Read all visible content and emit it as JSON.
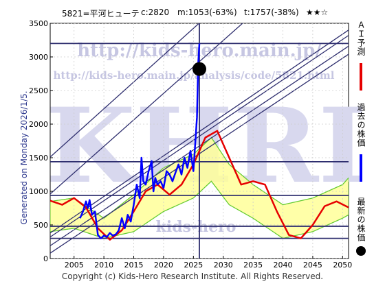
{
  "header": {
    "code_name": "5821=平河ヒューテ",
    "current": "c:2820",
    "median": "m:1053(-63%)",
    "target": "t:1757(-38%)",
    "stars": "★★☆"
  },
  "generated": "Generated on Monday 2026/1/5.",
  "footer": "Copyright (c) Kids-Hero Research Institute. All Rights Reserved.",
  "watermark": {
    "url1": "http://kids-hero.main.jp/",
    "url2": "http://kids-hero.main.jp/analysis/code/5821.html",
    "big": "KHRI",
    "bottom": "kids-hero"
  },
  "legend": {
    "ai": "ＡＩ予測",
    "past": "過去の株価",
    "latest": "最新の株価"
  },
  "colors": {
    "ai": "#e60000",
    "past": "#0000ff",
    "band_light": "#ffff99",
    "band_green": "#66cc33",
    "trend": "#2e2e6e",
    "latest": "#000000"
  },
  "chart_data": {
    "type": "line",
    "xlim": [
      2001,
      2051
    ],
    "ylim": [
      0,
      3500
    ],
    "x_ticks": [
      2005,
      2010,
      2015,
      2020,
      2025,
      2030,
      2035,
      2040,
      2045,
      2050
    ],
    "y_ticks": [
      0,
      500,
      1000,
      1500,
      2000,
      2500,
      3000,
      3500
    ],
    "hlines": [
      3200,
      1440,
      940,
      480,
      300
    ],
    "vline": 2026,
    "series": [
      {
        "name": "過去の株価",
        "x": [
          2006,
          2006.5,
          2007,
          2007.3,
          2007.6,
          2008,
          2008.5,
          2009,
          2009.5,
          2010,
          2010.5,
          2011,
          2011.5,
          2012,
          2012.5,
          2013,
          2013.5,
          2014,
          2014.5,
          2015,
          2015.5,
          2016,
          2016.3,
          2016.6,
          2017,
          2017.5,
          2018,
          2018.3,
          2018.6,
          2019,
          2019.5,
          2020,
          2020.5,
          2021,
          2021.5,
          2022,
          2022.5,
          2023,
          2023.5,
          2024,
          2024.5,
          2025,
          2025.3,
          2025.6,
          2025.8,
          2026
        ],
        "y": [
          600,
          700,
          850,
          750,
          870,
          650,
          700,
          350,
          300,
          340,
          320,
          380,
          340,
          360,
          420,
          600,
          450,
          650,
          550,
          800,
          1100,
          900,
          1500,
          1150,
          1100,
          1300,
          1450,
          1000,
          1200,
          1100,
          1150,
          1050,
          1300,
          1250,
          1150,
          1280,
          1400,
          1250,
          1500,
          1350,
          1600,
          1300,
          1700,
          2100,
          2900,
          3200
        ]
      },
      {
        "name": "ＡＩ予測",
        "x": [
          2001,
          2003,
          2005,
          2007,
          2009,
          2011,
          2013,
          2015,
          2017,
          2019,
          2021,
          2023,
          2025,
          2027,
          2029,
          2031,
          2033,
          2035,
          2037,
          2039,
          2041,
          2043,
          2045,
          2047,
          2049,
          2051
        ],
        "y": [
          860,
          800,
          900,
          760,
          450,
          280,
          420,
          700,
          1000,
          1100,
          950,
          1100,
          1400,
          1800,
          1900,
          1500,
          1100,
          1150,
          1100,
          700,
          350,
          300,
          500,
          780,
          850,
          760
        ]
      },
      {
        "name": "最新の株価",
        "x": [
          2026
        ],
        "y": [
          2820
        ]
      }
    ],
    "band": {
      "x": [
        2001,
        2005,
        2010,
        2015,
        2020,
        2025,
        2028,
        2031,
        2035,
        2040,
        2045,
        2050,
        2051
      ],
      "low": [
        400,
        450,
        300,
        400,
        700,
        900,
        1150,
        800,
        600,
        300,
        400,
        600,
        650
      ],
      "high": [
        850,
        900,
        600,
        950,
        1350,
        1550,
        1800,
        1400,
        1100,
        800,
        900,
        1100,
        1200
      ]
    },
    "trend_lines": [
      {
        "x": [
          2001,
          2051
        ],
        "y": [
          1510,
          5500
        ]
      },
      {
        "x": [
          2001,
          2051
        ],
        "y": [
          960,
          4900
        ]
      },
      {
        "x": [
          2001,
          2051
        ],
        "y": [
          380,
          3400
        ]
      },
      {
        "x": [
          2001,
          2051
        ],
        "y": [
          320,
          3320
        ]
      },
      {
        "x": [
          2001,
          2051
        ],
        "y": [
          190,
          3160
        ]
      },
      {
        "x": [
          2001,
          2051
        ],
        "y": [
          80,
          3040
        ]
      }
    ]
  }
}
